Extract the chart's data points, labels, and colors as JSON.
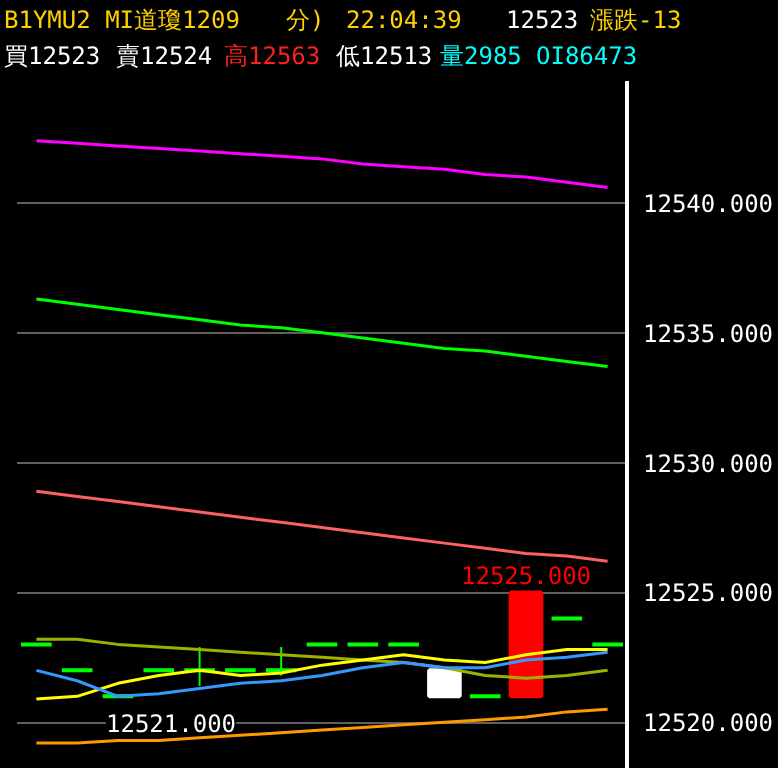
{
  "chart_data": {
    "type": "candlestick",
    "categories": [
      null,
      null,
      null,
      null,
      null,
      null,
      null,
      null,
      null,
      null,
      null,
      null,
      null,
      null,
      null
    ],
    "ohlc": [
      [
        12523,
        12523,
        12523,
        12523
      ],
      [
        12522,
        12522,
        12522,
        12522
      ],
      [
        12521,
        12521,
        12521,
        12521
      ],
      [
        12522,
        12522,
        12522,
        12522
      ],
      [
        12522,
        12522.9,
        12521.4,
        12522
      ],
      [
        12522,
        12522,
        12522,
        12522
      ],
      [
        12522,
        12522.9,
        12521.8,
        12522
      ],
      [
        12523,
        12523,
        12523,
        12523
      ],
      [
        12523,
        12523,
        12523,
        12523
      ],
      [
        12523,
        12523,
        12523,
        12523
      ],
      [
        12522,
        12522,
        12521,
        12521
      ],
      [
        12521,
        12521,
        12521,
        12521
      ],
      [
        12521,
        12525,
        12521,
        12525
      ],
      [
        12524,
        12524,
        12524,
        12524
      ],
      [
        12523,
        12523,
        12523,
        12523
      ]
    ],
    "colors": [
      "#00ff00",
      "#00ff00",
      "#00ff00",
      "#00ff00",
      "#00ff00",
      "#00ff00",
      "#00ff00",
      "#00ff00",
      "#00ff00",
      "#00ff00",
      "#ffffff",
      "#00ff00",
      "#ff0000",
      "#00ff00",
      "#00ff00"
    ],
    "series": [
      {
        "type": "line",
        "color": "#ff00ff",
        "values": [
          12542.4,
          12542.3,
          12542.2,
          12542.1,
          12542.0,
          12541.9,
          12541.8,
          12541.7,
          12541.5,
          12541.4,
          12541.3,
          12541.1,
          12541.0,
          12540.8,
          12540.6
        ]
      },
      {
        "type": "line",
        "color": "#00ff00",
        "values": [
          12536.3,
          12536.1,
          12535.9,
          12535.7,
          12535.5,
          12535.3,
          12535.2,
          12535.0,
          12534.8,
          12534.6,
          12534.4,
          12534.3,
          12534.1,
          12533.9,
          12533.7
        ]
      },
      {
        "type": "line",
        "color": "#ff6060",
        "values": [
          12528.9,
          12528.7,
          12528.5,
          12528.3,
          12528.1,
          12527.9,
          12527.7,
          12527.5,
          12527.3,
          12527.1,
          12526.9,
          12526.7,
          12526.5,
          12526.4,
          12526.2
        ]
      },
      {
        "type": "line",
        "color": "#a0b000",
        "values": [
          12523.2,
          12523.2,
          12523.0,
          12522.9,
          12522.8,
          12522.7,
          12522.6,
          12522.5,
          12522.4,
          12522.3,
          12522.1,
          12521.8,
          12521.7,
          12521.8,
          12522.0
        ]
      },
      {
        "type": "line",
        "color": "#ffff00",
        "values": [
          12520.9,
          12521.0,
          12521.5,
          12521.8,
          12522.0,
          12521.8,
          12521.9,
          12522.2,
          12522.4,
          12522.6,
          12522.4,
          12522.3,
          12522.6,
          12522.8,
          12522.8
        ]
      },
      {
        "type": "line",
        "color": "#3399ff",
        "values": [
          12522.0,
          12521.6,
          12521.0,
          12521.1,
          12521.3,
          12521.5,
          12521.6,
          12521.8,
          12522.1,
          12522.3,
          12522.1,
          12522.1,
          12522.4,
          12522.5,
          12522.7
        ]
      },
      {
        "type": "line",
        "color": "#ff9900",
        "values": [
          12519.2,
          12519.2,
          12519.3,
          12519.3,
          12519.4,
          12519.5,
          12519.6,
          12519.7,
          12519.8,
          12519.9,
          12520.0,
          12520.1,
          12520.2,
          12520.4,
          12520.5
        ]
      }
    ],
    "ylim": [
      12518.2,
      12544.7
    ],
    "yticks": [
      {
        "value": 12520,
        "label": "12520.000"
      },
      {
        "value": 12525,
        "label": "12525.000"
      },
      {
        "value": 12530,
        "label": "12530.000"
      },
      {
        "value": 12535,
        "label": "12535.000"
      },
      {
        "value": 12540,
        "label": "12540.000"
      }
    ],
    "grid": "y",
    "annotations": [
      "B1YMU2 MI道瓊1209",
      "分)",
      "22:04:39",
      "12523",
      "漲跌-13",
      "買12523",
      "賣12524",
      "高12563",
      "低12513",
      "量2985",
      "OI86473",
      {
        "text": "12525.000",
        "y": 12525
      },
      {
        "text": "12521.000",
        "y": 12521
      }
    ]
  }
}
